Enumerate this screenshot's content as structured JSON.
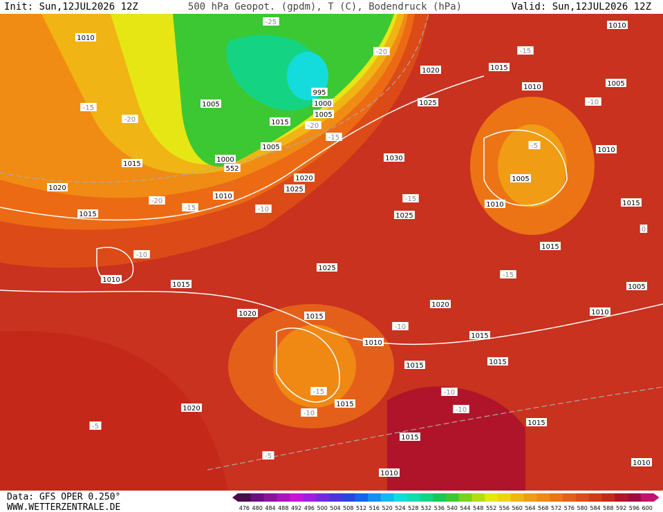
{
  "header": {
    "init": "Init: Sun,12JUL2026 12Z",
    "title": "500 hPa Geopot. (gpdm), T (C), Bodendruck (hPa)",
    "valid": "Valid: Sun,12JUL2026 12Z"
  },
  "footer": {
    "data": "Data: GFS OPER 0.250°",
    "site": "WWW.WETTERZENTRALE.DE"
  },
  "colorbar": {
    "labels": [
      476,
      480,
      484,
      488,
      492,
      496,
      500,
      504,
      508,
      512,
      516,
      520,
      524,
      528,
      532,
      536,
      540,
      544,
      548,
      552,
      556,
      560,
      564,
      568,
      572,
      576,
      580,
      584,
      588,
      592,
      596,
      600
    ],
    "colors": [
      "#4a0c4a",
      "#6a0f80",
      "#8a14a0",
      "#aa14bc",
      "#c814d8",
      "#a01ee0",
      "#7828dc",
      "#5032dc",
      "#2a46e0",
      "#1464ec",
      "#1490f0",
      "#14b8f0",
      "#14dcdc",
      "#14dcb0",
      "#14d484",
      "#14c85a",
      "#3cc832",
      "#78d21e",
      "#b4dc14",
      "#e6e614",
      "#f0d214",
      "#f0b414",
      "#f09c14",
      "#f08814",
      "#ec7414",
      "#e4601a",
      "#dc4c18",
      "#d23a14",
      "#c42818",
      "#b0142a",
      "#a00a40",
      "#c0146e"
    ]
  },
  "pressure_labels": [
    "1010",
    "1010",
    "1015",
    "1020",
    "1010",
    "1005",
    "1005",
    "995",
    "1000",
    "1005",
    "1025",
    "1015",
    "1005",
    "1000",
    "552",
    "1030",
    "1015",
    "1020",
    "1010",
    "1020",
    "1025",
    "1015",
    "1025",
    "1010",
    "1005",
    "1015",
    "1010",
    "1015",
    "1010",
    "1015",
    "1025",
    "1020",
    "1015",
    "1020",
    "1010",
    "1005",
    "1010",
    "1015",
    "1015",
    "1015",
    "1015",
    "1020",
    "1015",
    "1015",
    "1010",
    "1010"
  ],
  "temperature_labels": [
    "-25",
    "-20",
    "-15",
    "-15",
    "-20",
    "-10",
    "-5",
    "-20",
    "-15",
    "-10",
    "-15",
    "-15",
    "-20",
    "-10",
    "-15",
    "-10",
    "-15",
    "-10",
    "-10",
    "-10",
    "-5",
    "-5",
    "0"
  ]
}
